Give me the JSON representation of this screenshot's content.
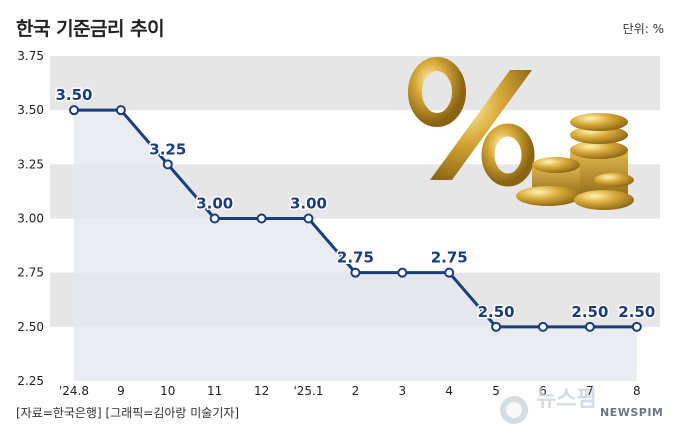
{
  "title": "한국 기준금리 추이",
  "unit": "단위: %",
  "source": "[자료=한국은행] [그래픽=김아랑 미술기자]",
  "brand": "NEWSPIM",
  "colors": {
    "line": "#1a3d7c",
    "band": "#e6e6e6",
    "area": "#e3e8ef",
    "text": "#222222"
  },
  "chart_data": {
    "type": "line",
    "title": "한국 기준금리 추이",
    "xlabel": "",
    "ylabel": "",
    "categories": [
      "'24.8",
      "9",
      "10",
      "11",
      "12",
      "'25.1",
      "2",
      "3",
      "4",
      "5",
      "6",
      "7",
      "8"
    ],
    "values": [
      3.5,
      3.5,
      3.25,
      3.0,
      3.0,
      3.0,
      2.75,
      2.75,
      2.75,
      2.5,
      2.5,
      2.5,
      2.5
    ],
    "data_labels": [
      {
        "index": 0,
        "text": "3.50"
      },
      {
        "index": 2,
        "text": "3.25"
      },
      {
        "index": 3,
        "text": "3.00"
      },
      {
        "index": 5,
        "text": "3.00"
      },
      {
        "index": 6,
        "text": "2.75"
      },
      {
        "index": 8,
        "text": "2.75"
      },
      {
        "index": 9,
        "text": "2.50"
      },
      {
        "index": 11,
        "text": "2.50"
      },
      {
        "index": 12,
        "text": "2.50"
      }
    ],
    "y_ticks": [
      "3.75",
      "3.50",
      "3.25",
      "3.00",
      "2.75",
      "2.50",
      "2.25"
    ],
    "ylim": [
      2.25,
      3.75
    ],
    "grid": "alternating horizontal bands",
    "legend": "none"
  }
}
